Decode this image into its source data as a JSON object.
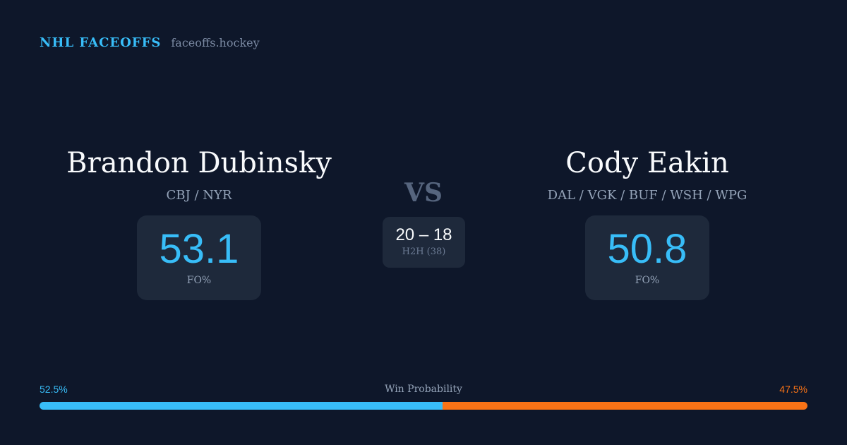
{
  "brand": {
    "title": "NHL FACEOFFS",
    "site": "faceoffs.hockey"
  },
  "left": {
    "name": "Brandon Dubinsky",
    "teams": "CBJ / NYR",
    "fo": "53.1",
    "fo_label": "FO%"
  },
  "right": {
    "name": "Cody Eakin",
    "teams": "DAL / VGK / BUF / WSH / WPG",
    "fo": "50.8",
    "fo_label": "FO%"
  },
  "vs": "VS",
  "h2h": {
    "score": "20 – 18",
    "label": "H2H (38)"
  },
  "probability": {
    "label": "Win Probability",
    "left": "52.5%",
    "right": "47.5%",
    "left_value": 52.5,
    "right_value": 47.5,
    "left_color": "#38bdf8",
    "right_color": "#f97316"
  }
}
